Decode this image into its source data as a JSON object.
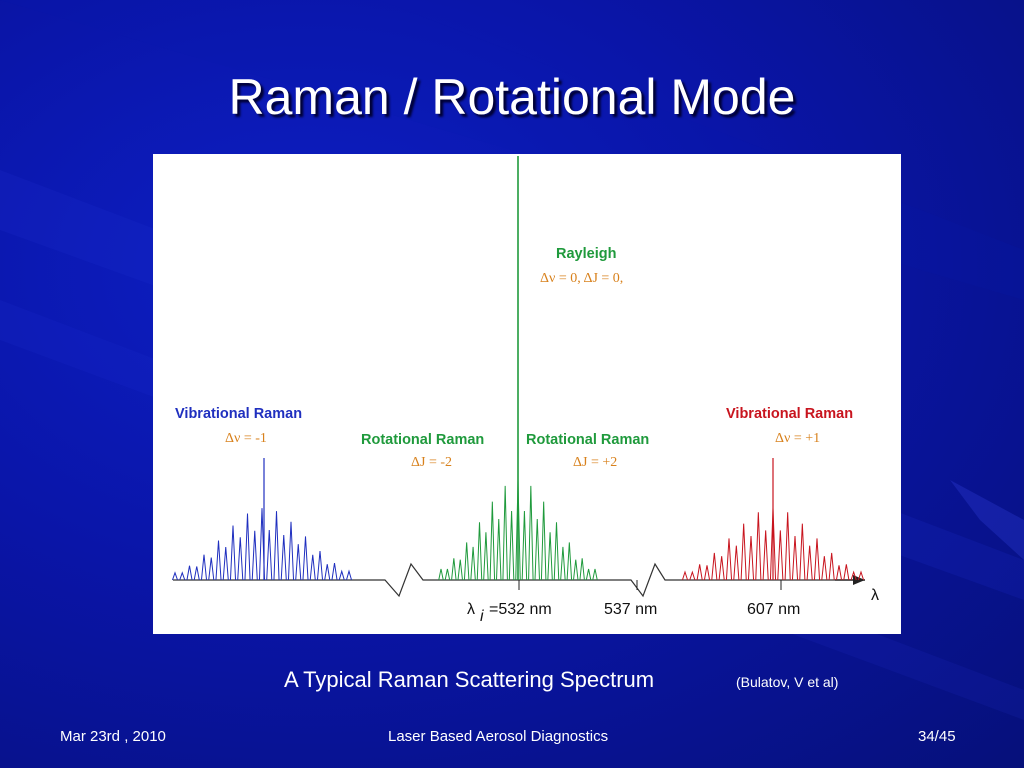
{
  "slide": {
    "title": "Raman / Rotational Mode",
    "caption": "A Typical Raman Scattering Spectrum",
    "citation": "(Bulatov, V et al)"
  },
  "footer": {
    "date": "Mar 23rd , 2010",
    "course": "Laser Based Aerosol Diagnostics",
    "page": "34/45"
  },
  "figure": {
    "labels": {
      "rayleigh": "Rayleigh",
      "rayleigh_rule": "Δν = 0, ΔJ = 0,",
      "vib_left": "Vibrational Raman",
      "vib_left_rule": "Δν = -1",
      "rot_left": "Rotational Raman",
      "rot_left_rule": "ΔJ = -2",
      "rot_right": "Rotational Raman",
      "rot_right_rule": "ΔJ = +2",
      "vib_right": "Vibrational Raman",
      "vib_right_rule": "Δν = +1"
    },
    "axis": {
      "lambda_i_symbol": "λ",
      "lambda_i_sub": "i",
      "tick_532": "=532 nm",
      "tick_537": "537 nm",
      "tick_607": "607 nm",
      "axis_symbol": "λ"
    },
    "colors": {
      "vib_left": "#1f2fbf",
      "rotational": "#1f9a3c",
      "vib_right": "#c8141e",
      "rule_text": "#d8811c",
      "baseline": "#333333"
    }
  }
}
